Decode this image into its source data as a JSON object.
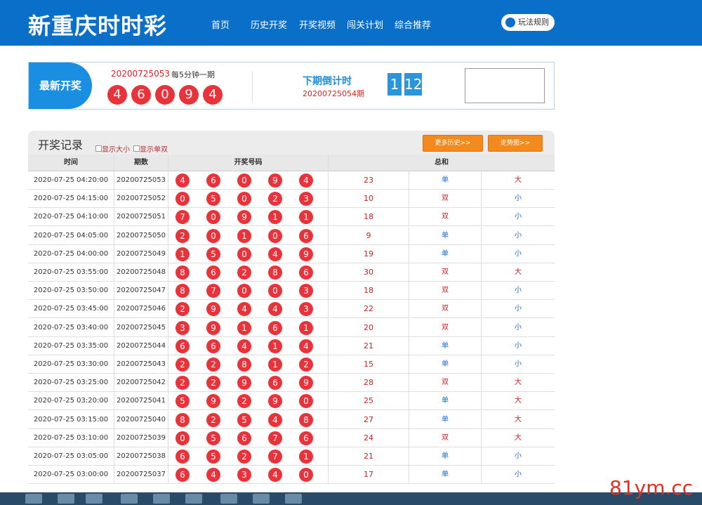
{
  "header": {
    "title": "新重庆时时彩",
    "nav": [
      "首页",
      "历史开奖",
      "开奖视频",
      "闯关计划",
      "综合推荐"
    ],
    "rules_button": "玩法规则"
  },
  "latest": {
    "label": "最新开奖",
    "issue": "20200725053",
    "period_note": "每5分钟一期",
    "balls": [
      4,
      6,
      0,
      9,
      4
    ],
    "countdown_label": "下期倒计时",
    "next_issue": "20200725054期",
    "countdown": [
      1,
      12
    ]
  },
  "records": {
    "title": "开奖记录",
    "toggles": [
      "显示大小",
      "显示单双"
    ],
    "buttons": [
      "更多历史>>",
      "走势图>>"
    ],
    "columns": {
      "time": "时间",
      "issue": "期数",
      "numbers": "开奖号码",
      "sum": "总和"
    },
    "rows": [
      {
        "time": "2020-07-25 04:20:00",
        "issue": "20200725053",
        "balls": [
          4,
          6,
          0,
          9,
          4
        ],
        "sum": 23,
        "parity": "单",
        "size": "大"
      },
      {
        "time": "2020-07-25 04:15:00",
        "issue": "20200725052",
        "balls": [
          0,
          5,
          0,
          2,
          3
        ],
        "sum": 10,
        "parity": "双",
        "size": "小"
      },
      {
        "time": "2020-07-25 04:10:00",
        "issue": "20200725051",
        "balls": [
          7,
          0,
          9,
          1,
          1
        ],
        "sum": 18,
        "parity": "双",
        "size": "小"
      },
      {
        "time": "2020-07-25 04:05:00",
        "issue": "20200725050",
        "balls": [
          2,
          0,
          1,
          0,
          6
        ],
        "sum": 9,
        "parity": "单",
        "size": "小"
      },
      {
        "time": "2020-07-25 04:00:00",
        "issue": "20200725049",
        "balls": [
          1,
          5,
          0,
          4,
          9
        ],
        "sum": 19,
        "parity": "单",
        "size": "小"
      },
      {
        "time": "2020-07-25 03:55:00",
        "issue": "20200725048",
        "balls": [
          8,
          6,
          2,
          8,
          6
        ],
        "sum": 30,
        "parity": "双",
        "size": "大"
      },
      {
        "time": "2020-07-25 03:50:00",
        "issue": "20200725047",
        "balls": [
          8,
          7,
          0,
          0,
          3
        ],
        "sum": 18,
        "parity": "双",
        "size": "小"
      },
      {
        "time": "2020-07-25 03:45:00",
        "issue": "20200725046",
        "balls": [
          2,
          9,
          4,
          4,
          3
        ],
        "sum": 22,
        "parity": "双",
        "size": "小"
      },
      {
        "time": "2020-07-25 03:40:00",
        "issue": "20200725045",
        "balls": [
          3,
          9,
          1,
          6,
          1
        ],
        "sum": 20,
        "parity": "双",
        "size": "小"
      },
      {
        "time": "2020-07-25 03:35:00",
        "issue": "20200725044",
        "balls": [
          6,
          6,
          4,
          1,
          4
        ],
        "sum": 21,
        "parity": "单",
        "size": "小"
      },
      {
        "time": "2020-07-25 03:30:00",
        "issue": "20200725043",
        "balls": [
          2,
          2,
          8,
          1,
          2
        ],
        "sum": 15,
        "parity": "单",
        "size": "小"
      },
      {
        "time": "2020-07-25 03:25:00",
        "issue": "20200725042",
        "balls": [
          2,
          2,
          9,
          6,
          9
        ],
        "sum": 28,
        "parity": "双",
        "size": "大"
      },
      {
        "time": "2020-07-25 03:20:00",
        "issue": "20200725041",
        "balls": [
          5,
          9,
          2,
          9,
          0
        ],
        "sum": 25,
        "parity": "单",
        "size": "大"
      },
      {
        "time": "2020-07-25 03:15:00",
        "issue": "20200725040",
        "balls": [
          8,
          2,
          5,
          4,
          8
        ],
        "sum": 27,
        "parity": "单",
        "size": "大"
      },
      {
        "time": "2020-07-25 03:10:00",
        "issue": "20200725039",
        "balls": [
          0,
          5,
          6,
          7,
          6
        ],
        "sum": 24,
        "parity": "双",
        "size": "大"
      },
      {
        "time": "2020-07-25 03:05:00",
        "issue": "20200725038",
        "balls": [
          6,
          5,
          2,
          7,
          1
        ],
        "sum": 21,
        "parity": "单",
        "size": "小"
      },
      {
        "time": "2020-07-25 03:00:00",
        "issue": "20200725037",
        "balls": [
          6,
          4,
          3,
          4,
          0
        ],
        "sum": 17,
        "parity": "单",
        "size": "小"
      }
    ]
  },
  "watermark": "81ym.cc"
}
